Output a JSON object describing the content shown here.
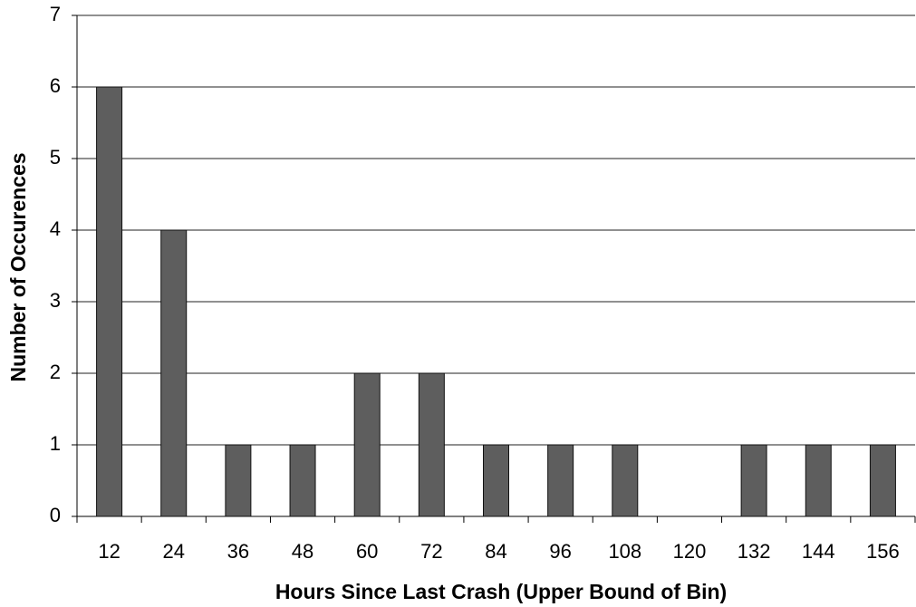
{
  "chart_data": {
    "type": "bar",
    "x_label": "Hours Since Last Crash (Upper Bound of Bin)",
    "y_label": "Number of Occurences",
    "categories": [
      "12",
      "24",
      "36",
      "48",
      "60",
      "72",
      "84",
      "96",
      "108",
      "120",
      "132",
      "144",
      "156"
    ],
    "values": [
      6,
      4,
      1,
      1,
      2,
      2,
      1,
      1,
      1,
      0,
      1,
      1,
      1
    ],
    "color": "#5e5e5e",
    "ylim": [
      0,
      7
    ],
    "yticks": [
      0,
      1,
      2,
      3,
      4,
      5,
      6,
      7
    ],
    "grid": true
  }
}
